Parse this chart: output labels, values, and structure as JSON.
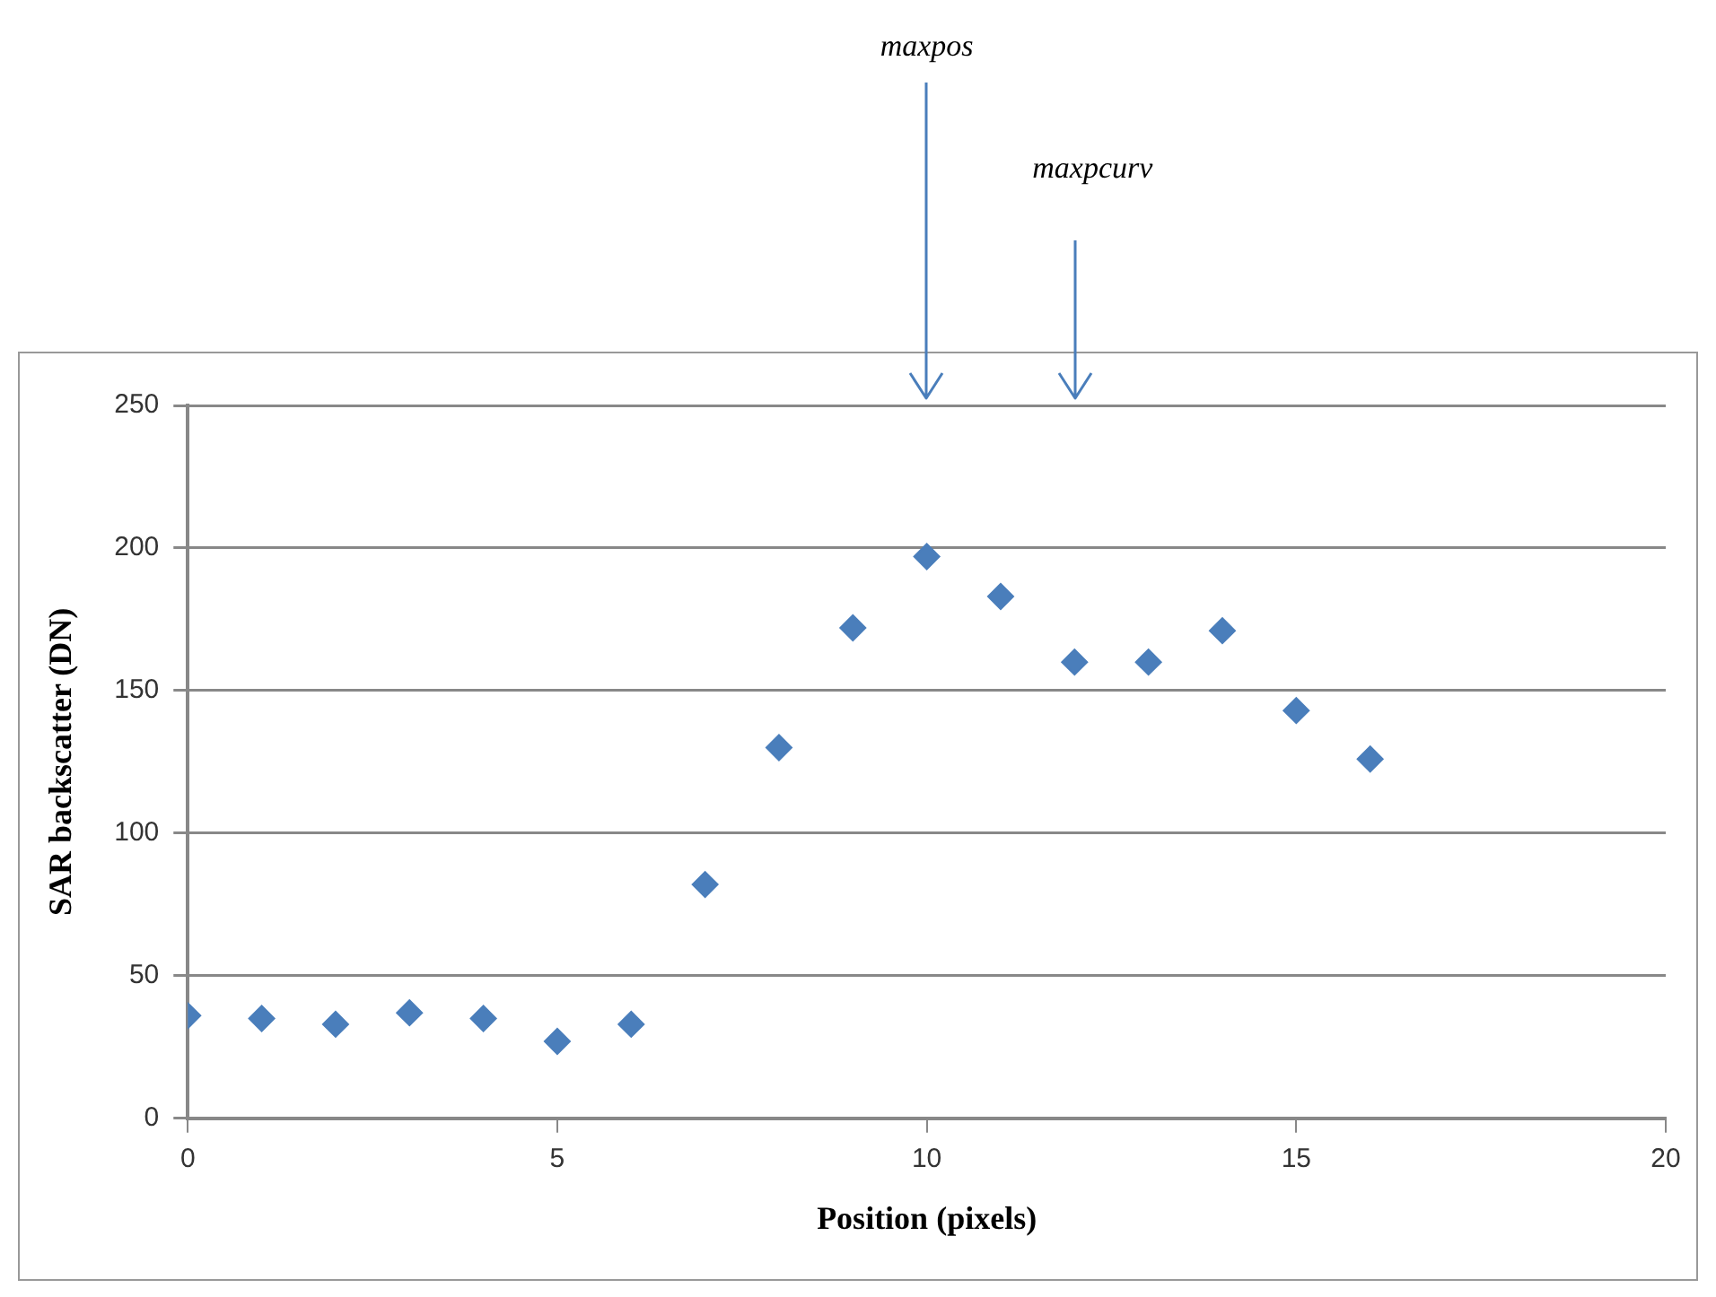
{
  "chart_data": {
    "type": "scatter",
    "xlabel": "Position (pixels)",
    "ylabel": "SAR backscatter (DN)",
    "x": [
      0,
      1,
      2,
      3,
      4,
      5,
      6,
      7,
      8,
      9,
      10,
      11,
      12,
      13,
      14,
      15,
      16
    ],
    "series": [
      {
        "color": "#4a7ebb",
        "values": [
          36,
          35,
          33,
          37,
          35,
          27,
          33,
          82,
          130,
          172,
          197,
          183,
          160,
          160,
          171,
          143,
          126
        ]
      }
    ],
    "xlim": [
      0,
      20
    ],
    "xticks": [
      0,
      5,
      10,
      15,
      20
    ],
    "ylim": [
      0,
      250
    ],
    "yticks": [
      0,
      50,
      100,
      150,
      200,
      250
    ],
    "grid": "y",
    "legend": false,
    "marker": "diamond",
    "annotations": [
      "maxpos",
      "maxpcurv"
    ]
  }
}
